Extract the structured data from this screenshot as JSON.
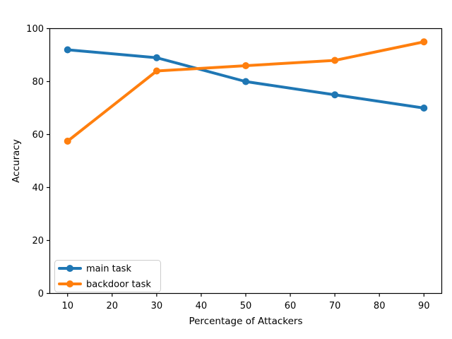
{
  "figure": {
    "background": "#ffffff",
    "spine_color": "#000000"
  },
  "chart_data": {
    "type": "line",
    "x": [
      10,
      30,
      50,
      70,
      90
    ],
    "series": [
      {
        "name": "main task",
        "color": "#1f77b4",
        "values": [
          92,
          89,
          80,
          75,
          70
        ]
      },
      {
        "name": "backdoor task",
        "color": "#ff7f0e",
        "values": [
          57.5,
          84,
          86,
          88,
          95
        ]
      }
    ],
    "title": "",
    "xlabel": "Percentage of Attackers",
    "ylabel": "Accuracy",
    "xticks": [
      10,
      20,
      30,
      40,
      50,
      60,
      70,
      80,
      90
    ],
    "yticks": [
      0,
      20,
      40,
      60,
      80,
      100
    ],
    "xlim": [
      6,
      94
    ],
    "ylim": [
      0,
      100
    ],
    "grid": false,
    "marker": "o",
    "line_width": 4,
    "marker_radius": 5,
    "legend": {
      "position": "lower left",
      "entries": [
        "main task",
        "backdoor task"
      ],
      "border_color": "#cccccc",
      "background": "#ffffff"
    }
  }
}
